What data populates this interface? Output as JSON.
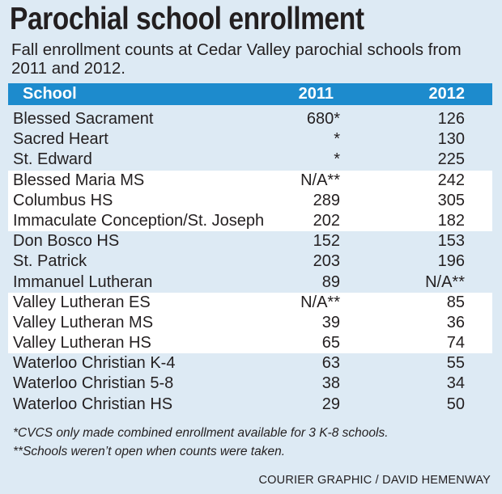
{
  "chart_data": {
    "type": "table",
    "title": "Parochial school enrollment",
    "subtitle": "Fall enrollment counts at Cedar Valley parochial schools from 2011 and 2012.",
    "columns": [
      "School",
      "2011",
      "2012"
    ],
    "rows": [
      {
        "school": "Blessed Sacrament",
        "y2011": "680*",
        "y2012": "126"
      },
      {
        "school": "Sacred Heart",
        "y2011": "*",
        "y2012": "130"
      },
      {
        "school": "St. Edward",
        "y2011": "*",
        "y2012": "225"
      },
      {
        "school": "Blessed Maria MS",
        "y2011": "N/A**",
        "y2012": "242"
      },
      {
        "school": "Columbus HS",
        "y2011": "289",
        "y2012": "305"
      },
      {
        "school": "Immaculate Conception/St. Joseph",
        "y2011": "202",
        "y2012": "182"
      },
      {
        "school": "Don Bosco HS",
        "y2011": "152",
        "y2012": "153"
      },
      {
        "school": "St. Patrick",
        "y2011": "203",
        "y2012": "196"
      },
      {
        "school": "Immanuel Lutheran",
        "y2011": "89",
        "y2012": "N/A**"
      },
      {
        "school": "Valley Lutheran ES",
        "y2011": "N/A**",
        "y2012": "85"
      },
      {
        "school": "Valley Lutheran MS",
        "y2011": "39",
        "y2012": "36"
      },
      {
        "school": "Valley Lutheran HS",
        "y2011": "65",
        "y2012": "74"
      },
      {
        "school": "Waterloo Christian K-4",
        "y2011": "63",
        "y2012": "55"
      },
      {
        "school": "Waterloo Christian 5-8",
        "y2011": "38",
        "y2012": "34"
      },
      {
        "school": "Waterloo Christian HS",
        "y2011": "29",
        "y2012": "50"
      }
    ],
    "row_groups_highlighted": [
      [
        3,
        4,
        5
      ],
      [
        9,
        10,
        11
      ]
    ],
    "footnotes": [
      "*CVCS only made combined enrollment available for 3 K-8 schools.",
      "**Schools weren’t open when counts were taken."
    ],
    "credit": "COURIER GRAPHIC / DAVID HEMENWAY"
  },
  "colors": {
    "background": "#ddeaf4",
    "header_bar": "#1d8bcd",
    "header_text": "#ffffff",
    "highlight_rows": "#ffffff",
    "text": "#231f20"
  }
}
